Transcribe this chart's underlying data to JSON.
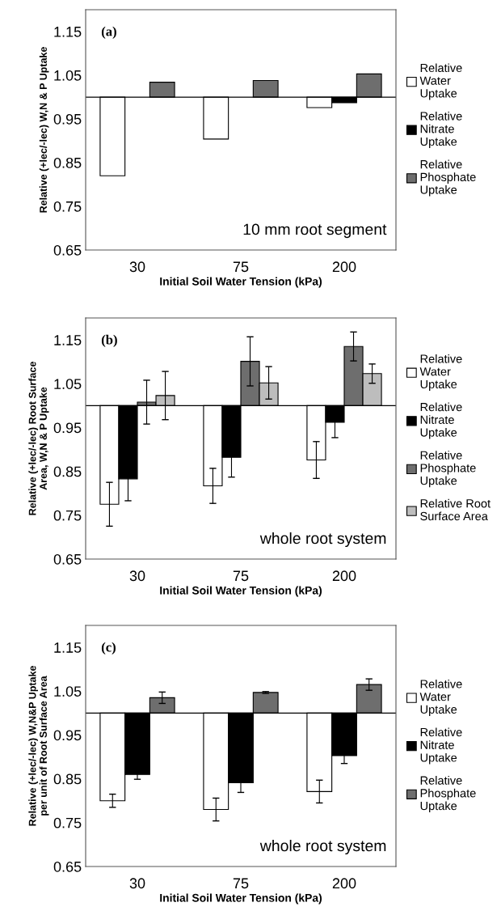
{
  "chart_data": [
    {
      "type": "bar",
      "xlabel": "Initial Soil Water Tension (kPa)",
      "ylabel": "Relative (+lec/-lec) W,N & P Uptake",
      "categories": [
        "30",
        "75",
        "200"
      ],
      "ylim": [
        0.65,
        1.2
      ],
      "yticks": [
        0.65,
        0.75,
        0.85,
        0.95,
        1.05,
        1.15
      ],
      "grid": false,
      "legend": "right",
      "annotations": [
        "(a)",
        "10 mm root segment"
      ],
      "ref_lines": [
        {
          "axis": "y",
          "value": 1,
          "color": "#000000"
        }
      ],
      "series": [
        {
          "name": "Relative\nWater\nUptake",
          "color": "#ffffff",
          "base": [
            1,
            1,
            1
          ],
          "values": [
            -0.18,
            -0.096,
            -0.024
          ]
        },
        {
          "name": "Relative\nNitrate\nUptake",
          "color": "#000000",
          "base": [
            null,
            null,
            1
          ],
          "values": [
            null,
            null,
            -0.013
          ]
        },
        {
          "name": "Relative\nPhosphate\nUptake",
          "color": "#6e6e6e",
          "base": [
            1,
            1,
            1
          ],
          "values": [
            0.034,
            0.038,
            0.053
          ]
        }
      ]
    },
    {
      "type": "bar",
      "xlabel": "Initial Soil Water Tension (kPa)",
      "ylabel": "Relative (+lec/-lec) Root Surface\nArea, W,N & P Uptake",
      "categories": [
        "30",
        "75",
        "200"
      ],
      "ylim": [
        0.65,
        1.2
      ],
      "yticks": [
        0.65,
        0.75,
        0.85,
        0.95,
        1.05,
        1.15
      ],
      "grid": false,
      "legend": "right",
      "annotations": [
        "(b)",
        "whole root system"
      ],
      "ref_lines": [
        {
          "axis": "y",
          "value": 1,
          "color": "#000000"
        }
      ],
      "series": [
        {
          "name": "Relative\nWater\nUptake",
          "color": "#ffffff",
          "base": [
            1,
            1,
            1
          ],
          "values": [
            -0.225,
            -0.183,
            -0.124
          ],
          "errors": [
            0.05,
            0.04,
            0.042
          ]
        },
        {
          "name": "Relative\nNitrate\nUptake",
          "color": "#000000",
          "base": [
            1,
            1,
            1
          ],
          "values": [
            -0.167,
            -0.118,
            -0.038
          ],
          "errors": [
            0.05,
            0.045,
            0.035
          ]
        },
        {
          "name": "Relative\nPhosphate\nUptake",
          "color": "#6e6e6e",
          "base": [
            1,
            1,
            1
          ],
          "values": [
            0.008,
            0.101,
            0.135
          ],
          "errors": [
            0.05,
            0.056,
            0.033
          ]
        },
        {
          "name": "Relative Root\nSurface Area",
          "color": "#bdbdbd",
          "base": [
            1,
            1,
            1
          ],
          "values": [
            0.023,
            0.052,
            0.073
          ],
          "errors": [
            0.055,
            0.037,
            0.022
          ]
        }
      ]
    },
    {
      "type": "bar",
      "xlabel": "Initial Soil Water Tension (kPa)",
      "ylabel": "Relative (+lec/-lec) W,N&P Uptake\nper unit of Root Surface Area",
      "categories": [
        "30",
        "75",
        "200"
      ],
      "ylim": [
        0.65,
        1.2
      ],
      "yticks": [
        0.65,
        0.75,
        0.85,
        0.95,
        1.05,
        1.15
      ],
      "grid": false,
      "legend": "right",
      "annotations": [
        "(c)",
        "whole root system"
      ],
      "ref_lines": [
        {
          "axis": "y",
          "value": 1,
          "color": "#000000"
        }
      ],
      "series": [
        {
          "name": "Relative\nWater\nUptake",
          "color": "#ffffff",
          "base": [
            1,
            1,
            1
          ],
          "values": [
            -0.2,
            -0.22,
            -0.179
          ],
          "errors": [
            0.015,
            0.026,
            0.026
          ]
        },
        {
          "name": "Relative\nNitrate\nUptake",
          "color": "#000000",
          "base": [
            1,
            1,
            1
          ],
          "values": [
            -0.14,
            -0.159,
            -0.097
          ],
          "errors": [
            0.011,
            0.022,
            0.018
          ]
        },
        {
          "name": "Relative\nPhosphate\nUptake",
          "color": "#6e6e6e",
          "base": [
            1,
            1,
            1
          ],
          "values": [
            0.035,
            0.047,
            0.065
          ],
          "errors": [
            0.013,
            0.002,
            0.013
          ]
        }
      ]
    }
  ]
}
